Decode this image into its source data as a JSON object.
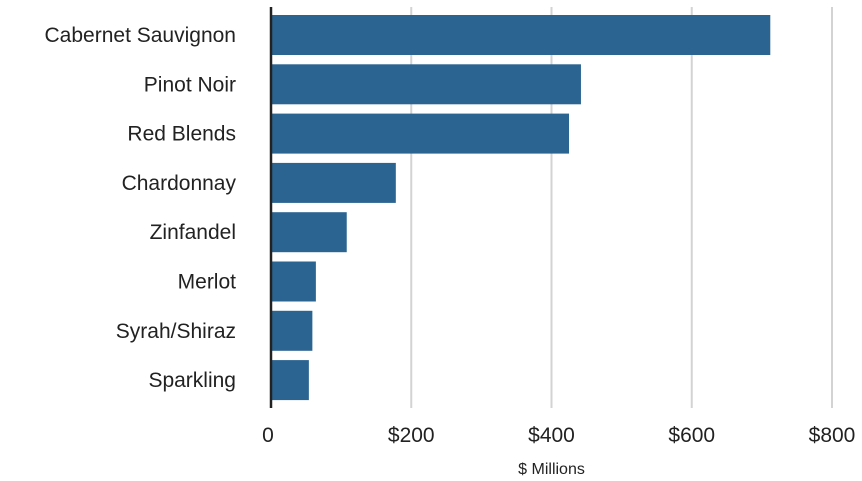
{
  "chart_data": {
    "type": "bar",
    "orientation": "horizontal",
    "categories": [
      "Cabernet Sauvignon",
      "Pinot Noir",
      "Red Blends",
      "Chardonnay",
      "Zinfandel",
      "Merlot",
      "Syrah/Shiraz",
      "Sparkling"
    ],
    "values": [
      712,
      442,
      425,
      178,
      108,
      64,
      59,
      54
    ],
    "xlabel": "$ Millions",
    "ylabel": "",
    "xlim": [
      0,
      800
    ],
    "xticks": [
      0,
      200,
      400,
      600,
      800
    ],
    "xtick_labels": [
      "0",
      "$200",
      "$400",
      "$600",
      "$800"
    ],
    "grid": "vertical",
    "bar_color": "#2b6491",
    "grid_color": "#d3d3d3",
    "axis_color": "#222222"
  }
}
